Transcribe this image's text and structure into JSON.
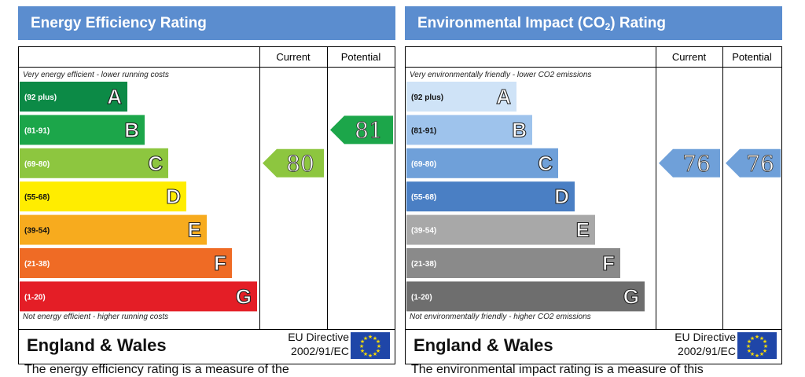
{
  "chart_data": [
    {
      "type": "bar",
      "title": "Energy Efficiency Rating",
      "column_headers": [
        "Current",
        "Potential"
      ],
      "top_note": "Very energy efficient - lower running costs",
      "bottom_note": "Not energy efficient - higher running costs",
      "bands": [
        {
          "range": "(92 plus)",
          "letter": "A",
          "color": "#0c8a46"
        },
        {
          "range": "(81-91)",
          "letter": "B",
          "color": "#1ca64a"
        },
        {
          "range": "(69-80)",
          "letter": "C",
          "color": "#8dc63f"
        },
        {
          "range": "(55-68)",
          "letter": "D",
          "color": "#ffed00"
        },
        {
          "range": "(39-54)",
          "letter": "E",
          "color": "#f7ab1e"
        },
        {
          "range": "(21-38)",
          "letter": "F",
          "color": "#ef6b25"
        },
        {
          "range": "(1-20)",
          "letter": "G",
          "color": "#e41e26"
        }
      ],
      "current": {
        "value": 80,
        "band": "C",
        "color": "#8dc63f"
      },
      "potential": {
        "value": 81,
        "band": "B",
        "color": "#1ca64a"
      },
      "footer_title": "England & Wales",
      "directive_line1": "EU Directive",
      "directive_line2": "2002/91/EC",
      "caption": "The energy efficiency rating is a measure of the"
    },
    {
      "type": "bar",
      "title_main": "Environmental Impact (CO",
      "title_sub": "2",
      "title_end": ") Rating",
      "column_headers": [
        "Current",
        "Potential"
      ],
      "top_note": "Very environmentally friendly - lower CO2 emissions",
      "bottom_note": "Not environmentally friendly - higher CO2 emissions",
      "bands": [
        {
          "range": "(92 plus)",
          "letter": "A",
          "color": "#cfe3f7"
        },
        {
          "range": "(81-91)",
          "letter": "B",
          "color": "#9ec3ec"
        },
        {
          "range": "(69-80)",
          "letter": "C",
          "color": "#6fa0d9"
        },
        {
          "range": "(55-68)",
          "letter": "D",
          "color": "#4a7fc4"
        },
        {
          "range": "(39-54)",
          "letter": "E",
          "color": "#a8a8a8"
        },
        {
          "range": "(21-38)",
          "letter": "F",
          "color": "#8a8a8a"
        },
        {
          "range": "(1-20)",
          "letter": "G",
          "color": "#6e6e6e"
        }
      ],
      "current": {
        "value": 76,
        "band": "C",
        "color": "#6fa0d9"
      },
      "potential": {
        "value": 76,
        "band": "C",
        "color": "#6fa0d9"
      },
      "footer_title": "England & Wales",
      "directive_line1": "EU Directive",
      "directive_line2": "2002/91/EC",
      "caption": "The environmental impact rating is a measure of this"
    }
  ]
}
